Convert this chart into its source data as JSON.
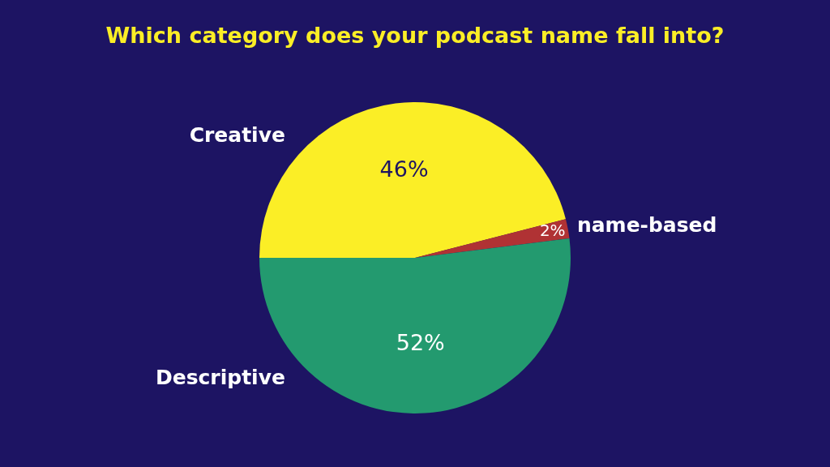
{
  "chart_data": {
    "type": "pie",
    "title": "Which category does your podcast name fall into?",
    "categories": [
      "Creative",
      "name-based",
      "Descriptive"
    ],
    "values": [
      46,
      2,
      52
    ],
    "colors": [
      "#fbee26",
      "#b03234",
      "#239a6f"
    ],
    "value_labels": [
      "46%",
      "2%",
      "52%"
    ]
  }
}
